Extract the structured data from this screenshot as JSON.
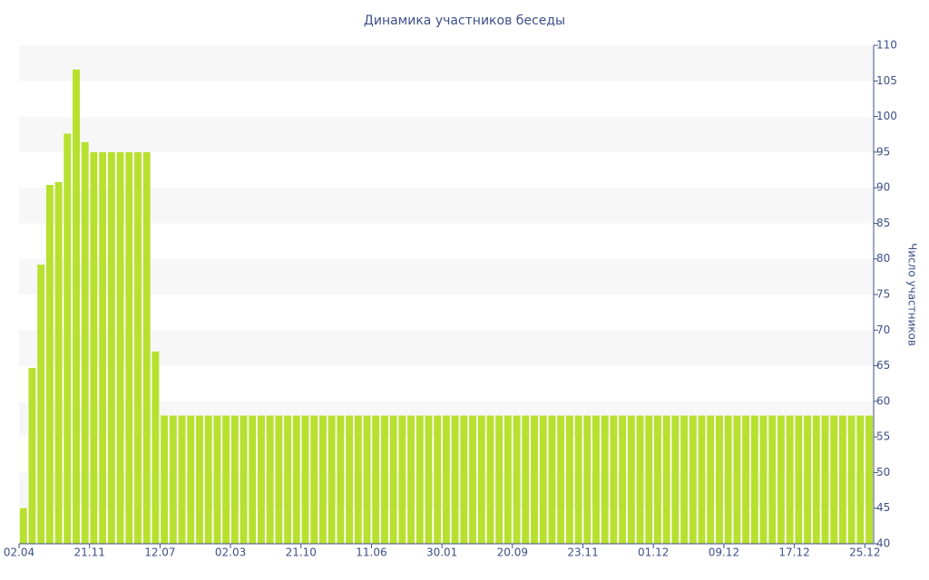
{
  "chart_data": {
    "type": "bar",
    "title": "Динамика участников беседы",
    "y_label": "Число участников",
    "categories": [
      "02.04",
      null,
      null,
      null,
      null,
      null,
      null,
      null,
      "21.11",
      null,
      null,
      null,
      null,
      null,
      null,
      null,
      "12.07",
      null,
      null,
      null,
      null,
      null,
      null,
      null,
      "02.03",
      null,
      null,
      null,
      null,
      null,
      null,
      null,
      "21.10",
      null,
      null,
      null,
      null,
      null,
      null,
      null,
      "11.06",
      null,
      null,
      null,
      null,
      null,
      null,
      null,
      "30.01",
      null,
      null,
      null,
      null,
      null,
      null,
      null,
      "20.09",
      null,
      null,
      null,
      null,
      null,
      null,
      null,
      "23.11",
      null,
      null,
      null,
      null,
      null,
      null,
      null,
      "01.12",
      null,
      null,
      null,
      null,
      null,
      null,
      null,
      "09.12",
      null,
      null,
      null,
      null,
      null,
      null,
      null,
      "17.12",
      null,
      null,
      null,
      null,
      null,
      null,
      null,
      "25.12"
    ],
    "values": [
      45,
      64.7,
      79.2,
      90.4,
      90.8,
      97.6,
      106.6,
      96.4,
      95,
      95,
      95,
      95,
      95,
      95,
      95,
      67,
      58,
      58,
      58,
      58,
      58,
      58,
      58,
      58,
      58,
      58,
      58,
      58,
      58,
      58,
      58,
      58,
      58,
      58,
      58,
      58,
      58,
      58,
      58,
      58,
      58,
      58,
      58,
      58,
      58,
      58,
      58,
      58,
      58,
      58,
      58,
      58,
      58,
      58,
      58,
      58,
      58,
      58,
      58,
      58,
      58,
      58,
      58,
      58,
      58,
      58,
      58,
      58,
      58,
      58,
      58,
      58,
      58,
      58,
      58,
      58,
      58,
      58,
      58,
      58,
      58,
      58,
      58,
      58,
      58,
      58,
      58,
      58,
      58,
      58,
      58,
      58,
      58,
      58,
      58,
      58,
      58
    ],
    "color": "#b8e02e",
    "ylim": [
      40,
      110
    ],
    "yticks": [
      40,
      45,
      50,
      55,
      60,
      65,
      70,
      75,
      80,
      85,
      90,
      95,
      100,
      105,
      110
    ],
    "grid": true
  }
}
